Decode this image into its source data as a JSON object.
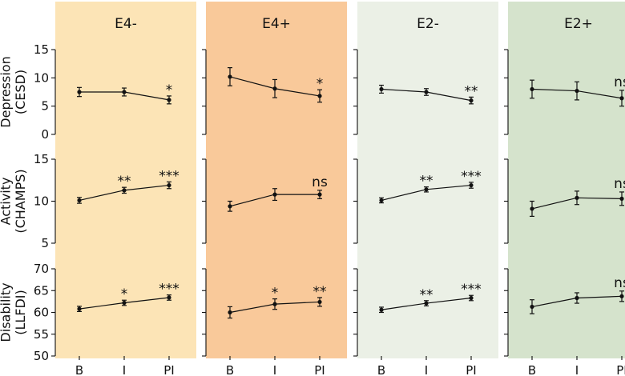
{
  "chart_data": {
    "type": "line",
    "categories": [
      "B",
      "I",
      "PI"
    ],
    "columns": [
      {
        "key": "e4m",
        "title": "E4-",
        "color": "#fce4b6"
      },
      {
        "key": "e4p",
        "title": "E4+",
        "color": "#f9c99a"
      },
      {
        "key": "e2m",
        "title": "E2-",
        "color": "#ebf0e6"
      },
      {
        "key": "e2p",
        "title": "E2+",
        "color": "#d5e3cc"
      }
    ],
    "rows": [
      {
        "key": "cesd",
        "label_lines": [
          "Depression",
          "(CESD)"
        ],
        "ylim": [
          0,
          15
        ],
        "yticks": [
          0,
          5,
          10,
          15
        ],
        "panels": [
          {
            "values": [
              7.5,
              7.5,
              6.1
            ],
            "errors": [
              0.8,
              0.7,
              0.7
            ],
            "sig": [
              "",
              "",
              "*"
            ]
          },
          {
            "values": [
              10.2,
              8.1,
              6.8
            ],
            "errors": [
              1.6,
              1.6,
              1.1
            ],
            "sig": [
              "",
              "",
              "*"
            ]
          },
          {
            "values": [
              8.0,
              7.5,
              6.0
            ],
            "errors": [
              0.7,
              0.6,
              0.6
            ],
            "sig": [
              "",
              "",
              "**"
            ]
          },
          {
            "values": [
              8.0,
              7.7,
              6.4
            ],
            "errors": [
              1.6,
              1.6,
              1.4
            ],
            "sig": [
              "",
              "",
              "ns"
            ]
          }
        ]
      },
      {
        "key": "champs",
        "label_lines": [
          "Activity",
          "(CHAMPS)"
        ],
        "ylim": [
          5,
          15
        ],
        "yticks": [
          5,
          10,
          15
        ],
        "panels": [
          {
            "values": [
              10.1,
              11.3,
              11.9
            ],
            "errors": [
              0.35,
              0.35,
              0.4
            ],
            "sig": [
              "",
              "**",
              "***"
            ]
          },
          {
            "values": [
              9.4,
              10.8,
              10.8
            ],
            "errors": [
              0.6,
              0.7,
              0.5
            ],
            "sig": [
              "",
              "",
              "ns"
            ]
          },
          {
            "values": [
              10.1,
              11.4,
              11.9
            ],
            "errors": [
              0.3,
              0.3,
              0.35
            ],
            "sig": [
              "",
              "**",
              "***"
            ]
          },
          {
            "values": [
              9.1,
              10.4,
              10.3
            ],
            "errors": [
              0.9,
              0.8,
              0.8
            ],
            "sig": [
              "",
              "",
              "ns"
            ]
          }
        ]
      },
      {
        "key": "llfdi",
        "label_lines": [
          "Disability",
          "(LLFDI)"
        ],
        "ylim": [
          50,
          70
        ],
        "yticks": [
          50,
          55,
          60,
          65,
          70
        ],
        "panels": [
          {
            "values": [
              60.8,
              62.2,
              63.4
            ],
            "errors": [
              0.6,
              0.6,
              0.6
            ],
            "sig": [
              "",
              "*",
              "***"
            ]
          },
          {
            "values": [
              60.0,
              61.9,
              62.4
            ],
            "errors": [
              1.3,
              1.2,
              1.0
            ],
            "sig": [
              "",
              "*",
              "**"
            ]
          },
          {
            "values": [
              60.6,
              62.1,
              63.3
            ],
            "errors": [
              0.6,
              0.6,
              0.6
            ],
            "sig": [
              "",
              "**",
              "***"
            ]
          },
          {
            "values": [
              61.3,
              63.3,
              63.7
            ],
            "errors": [
              1.6,
              1.2,
              1.2
            ],
            "sig": [
              "",
              "",
              "ns"
            ]
          }
        ]
      }
    ],
    "grid": false,
    "legend": "none"
  }
}
